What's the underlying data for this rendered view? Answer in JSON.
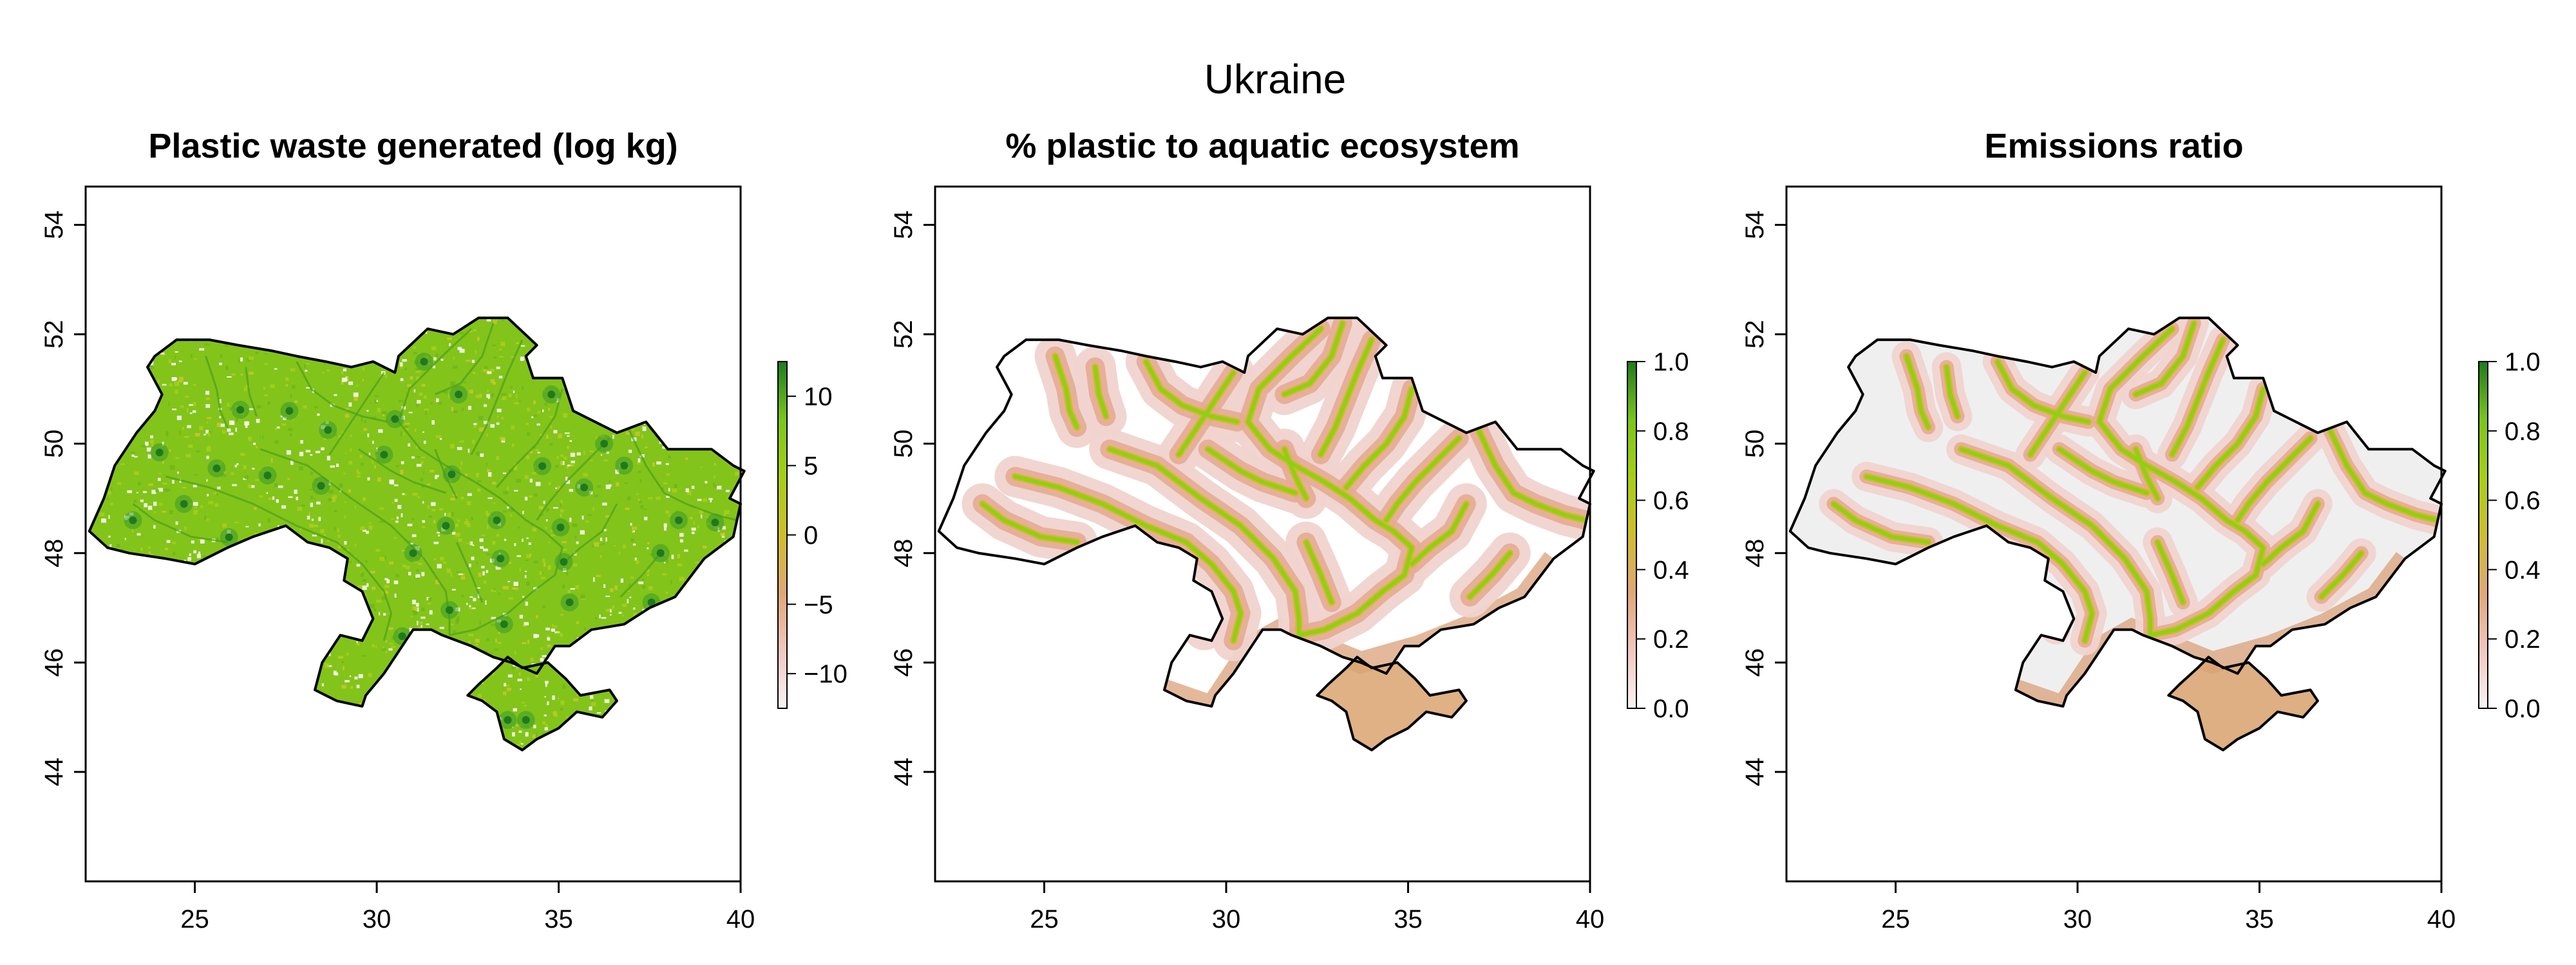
{
  "figure": {
    "title": "Ukraine"
  },
  "colors": {
    "ramp": [
      "#fbf3f3",
      "#f1c7c0",
      "#dfa777",
      "#cfbd2e",
      "#a6cf14",
      "#7bc51b",
      "#1f7a1f"
    ],
    "outline": "#000000",
    "background_fill": "#efefef"
  },
  "chart_data": [
    {
      "type": "heatmap",
      "title": "Plastic waste generated (log kg)",
      "xlabel": "",
      "ylabel": "",
      "xlim": [
        22,
        40
      ],
      "ylim": [
        42,
        54.7
      ],
      "x_ticks": [
        25,
        30,
        35,
        40
      ],
      "y_ticks": [
        44,
        46,
        48,
        50,
        52,
        54
      ],
      "legend": {
        "min": -12.5,
        "max": 12.5,
        "ticks": [
          -10,
          -5,
          0,
          5,
          10
        ],
        "labels": [
          "−10",
          "−5",
          "0",
          "5",
          "10"
        ]
      },
      "fill_style": "dense"
    },
    {
      "type": "heatmap",
      "title": "% plastic to aquatic ecosystem",
      "xlabel": "",
      "ylabel": "",
      "xlim": [
        22,
        40
      ],
      "ylim": [
        42,
        54.7
      ],
      "x_ticks": [
        25,
        30,
        35,
        40
      ],
      "y_ticks": [
        44,
        46,
        48,
        50,
        52,
        54
      ],
      "legend": {
        "min": 0,
        "max": 1,
        "ticks": [
          0,
          0.2,
          0.4,
          0.6,
          0.8,
          1
        ],
        "labels": [
          "0.0",
          "0.2",
          "0.4",
          "0.6",
          "0.8",
          "1.0"
        ]
      },
      "fill_style": "rivers"
    },
    {
      "type": "heatmap",
      "title": "Emissions ratio",
      "xlabel": "",
      "ylabel": "",
      "xlim": [
        22,
        40
      ],
      "ylim": [
        42,
        54.7
      ],
      "x_ticks": [
        25,
        30,
        35,
        40
      ],
      "y_ticks": [
        44,
        46,
        48,
        50,
        52,
        54
      ],
      "legend": {
        "min": 0,
        "max": 1,
        "ticks": [
          0,
          0.2,
          0.4,
          0.6,
          0.8,
          1
        ],
        "labels": [
          "0.0",
          "0.2",
          "0.4",
          "0.6",
          "0.8",
          "1.0"
        ]
      },
      "fill_style": "rivers-grey"
    }
  ]
}
